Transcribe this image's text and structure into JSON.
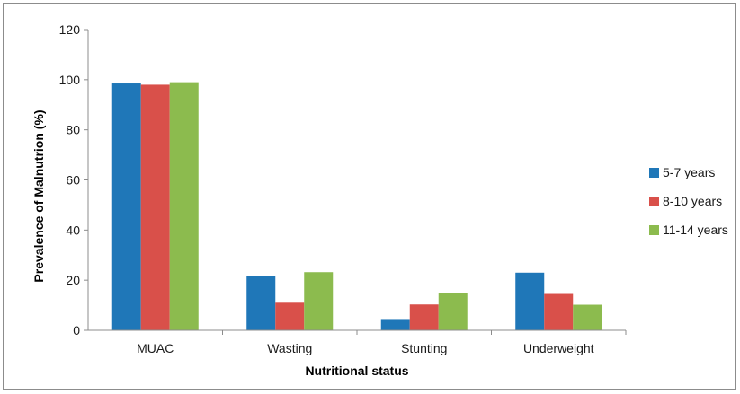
{
  "chart_data": {
    "type": "bar",
    "xlabel": "Nutritional status",
    "ylabel": "Prevalence of Malnutrion (%)",
    "ylim": [
      0,
      120
    ],
    "yticks": [
      0,
      20,
      40,
      60,
      80,
      100,
      120
    ],
    "grid": false,
    "legend_position": "right",
    "categories": [
      "MUAC",
      "Wasting",
      "Stunting",
      "Underweight"
    ],
    "series": [
      {
        "name": "5-7 years",
        "color": "#1f77b8",
        "values": [
          98.5,
          21.5,
          4.5,
          23
        ]
      },
      {
        "name": "8-10 years",
        "color": "#d9504a",
        "values": [
          98,
          11,
          10.3,
          14.5
        ]
      },
      {
        "name": "11-14 years",
        "color": "#8cbb4e",
        "values": [
          99,
          23.2,
          15,
          10.2
        ]
      }
    ]
  }
}
